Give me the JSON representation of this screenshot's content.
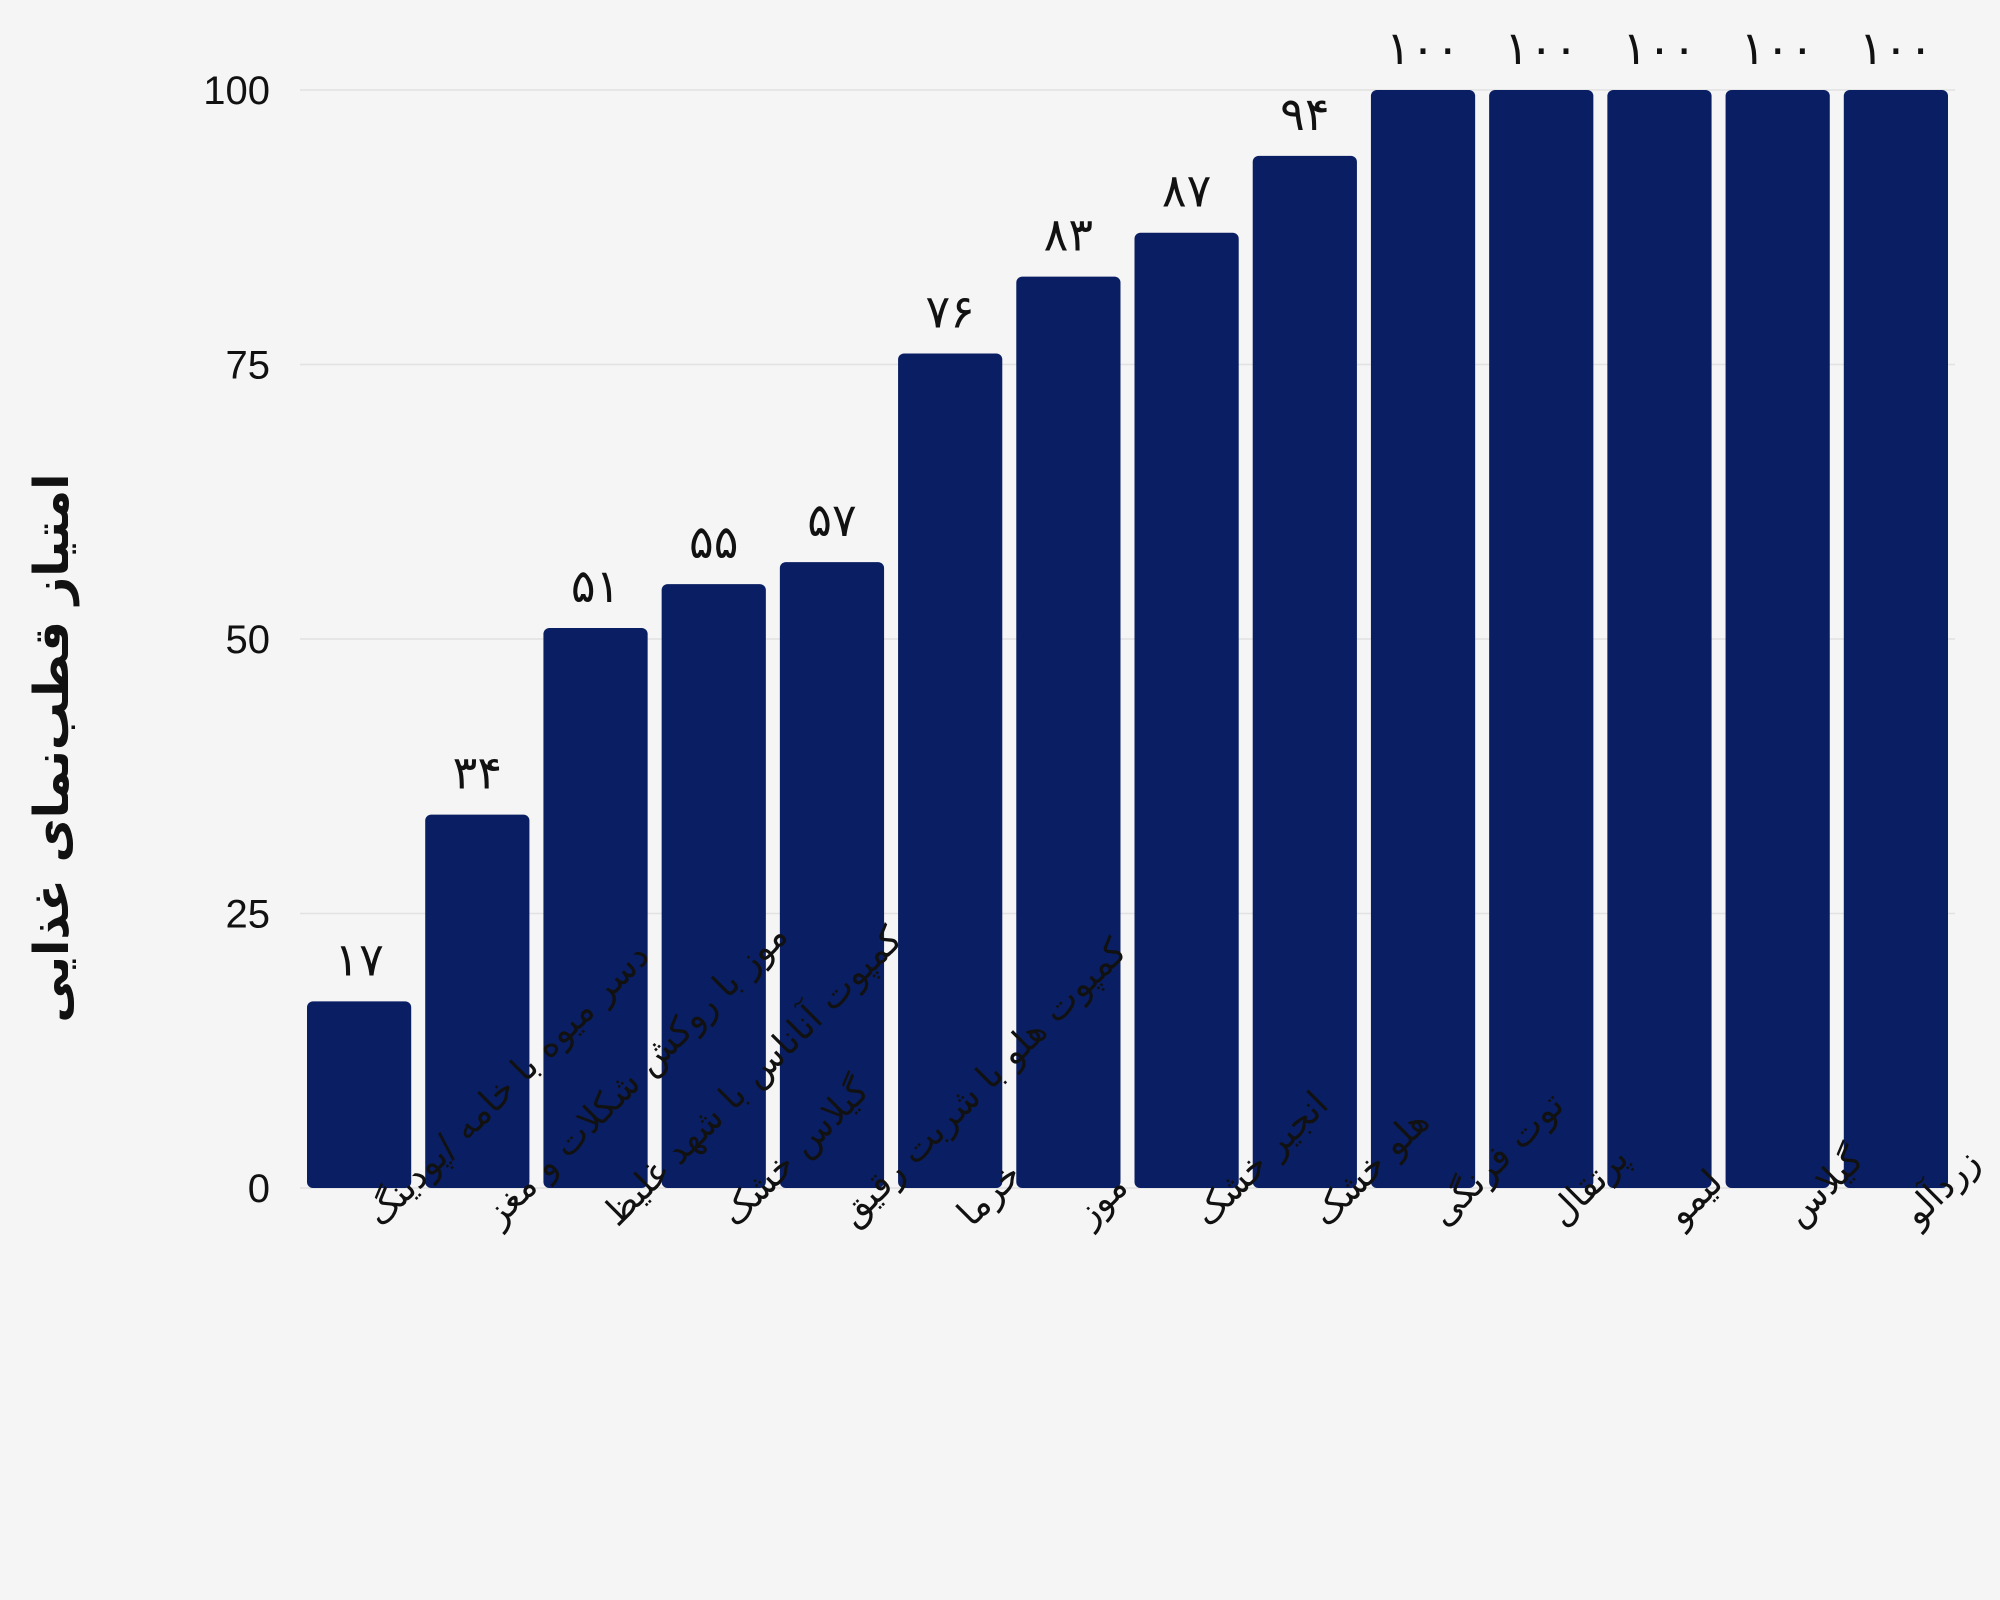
{
  "chart_data": {
    "type": "bar",
    "title": "",
    "xlabel": "",
    "ylabel": "امتیاز قطب‌نمای غذایی",
    "ylim": [
      0,
      100
    ],
    "yticks": [
      0,
      25,
      50,
      75,
      100
    ],
    "ytick_labels": [
      "0",
      "25",
      "50",
      "75",
      "100"
    ],
    "grid": true,
    "categories": [
      "دسر میوه با خامه /پودینگ",
      "موز با روکش شکلات و مغز",
      "کمپوت آناناس با شهد غلیظ",
      "گیلاس خشک",
      "کمپوت هلو با شربت رقیق",
      "خرما",
      "موز",
      "انجیر خشک",
      "هلو خشک",
      "توت فرنگی",
      "پرتقال",
      "لیمو",
      "گیلاس",
      "زردآلو"
    ],
    "values": [
      17,
      34,
      51,
      55,
      57,
      76,
      83,
      87,
      94,
      100,
      100,
      100,
      100,
      100
    ],
    "data_labels": [
      "۱۷",
      "۳۴",
      "۵۱",
      "۵۵",
      "۵۷",
      "۷۶",
      "۸۳",
      "۸۷",
      "۹۴",
      "۱۰۰",
      "۱۰۰",
      "۱۰۰",
      "۱۰۰",
      "۱۰۰"
    ],
    "colors": {
      "bar": "#0a1f63",
      "grid": "#e2e2e2",
      "background": "#f5f5f5",
      "text": "#111111"
    }
  }
}
